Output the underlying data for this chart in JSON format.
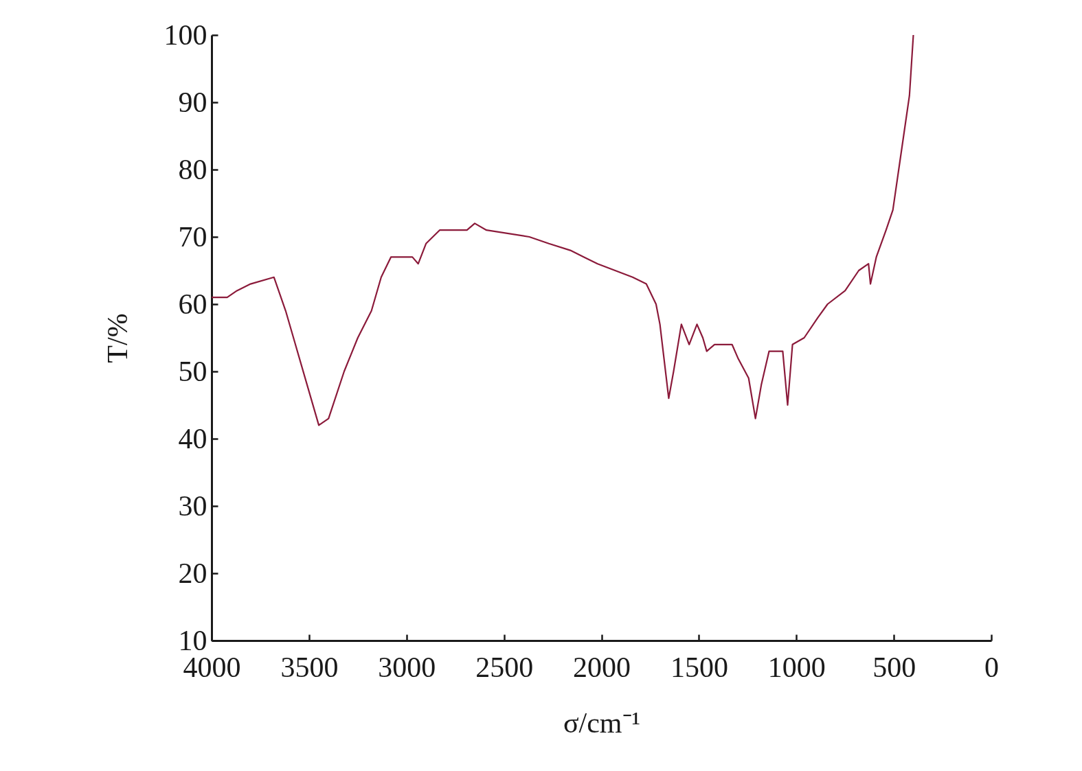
{
  "chart_data": {
    "type": "line",
    "xlabel": "σ/cm⁻¹",
    "ylabel": "T/%",
    "xlim": [
      4000,
      0
    ],
    "xticks": [
      4000,
      3500,
      3000,
      2500,
      2000,
      1500,
      1000,
      500,
      0
    ],
    "ylim": [
      10,
      100
    ],
    "yticks": [
      10,
      20,
      30,
      40,
      50,
      60,
      70,
      80,
      90,
      100
    ],
    "grid": false,
    "marker": "none",
    "line_style": "solid",
    "x": [
      4000,
      3920,
      3870,
      3800,
      3680,
      3620,
      3570,
      3500,
      3450,
      3400,
      3320,
      3250,
      3180,
      3130,
      3080,
      2970,
      2940,
      2900,
      2830,
      2690,
      2650,
      2590,
      2370,
      2270,
      2160,
      2090,
      2020,
      1930,
      1840,
      1770,
      1720,
      1700,
      1655,
      1630,
      1590,
      1550,
      1510,
      1480,
      1460,
      1420,
      1330,
      1300,
      1245,
      1210,
      1180,
      1140,
      1070,
      1045,
      1020,
      960,
      890,
      840,
      750,
      680,
      630,
      620,
      590,
      540,
      505,
      475,
      450,
      420,
      400
    ],
    "series": [
      {
        "color": "#8b1a3a",
        "values": [
          61,
          61,
          62,
          63,
          64,
          59,
          54,
          47,
          42,
          43,
          50,
          55,
          59,
          64,
          67,
          67,
          66,
          69,
          71,
          71,
          72,
          71,
          70,
          69,
          68,
          67,
          66,
          65,
          64,
          63,
          60,
          57,
          46,
          50,
          57,
          54,
          57,
          55,
          53,
          54,
          54,
          52,
          49,
          43,
          48,
          53,
          53,
          45,
          54,
          55,
          58,
          60,
          62,
          65,
          66,
          63,
          67,
          71,
          74,
          80,
          85,
          91,
          100
        ]
      }
    ]
  }
}
